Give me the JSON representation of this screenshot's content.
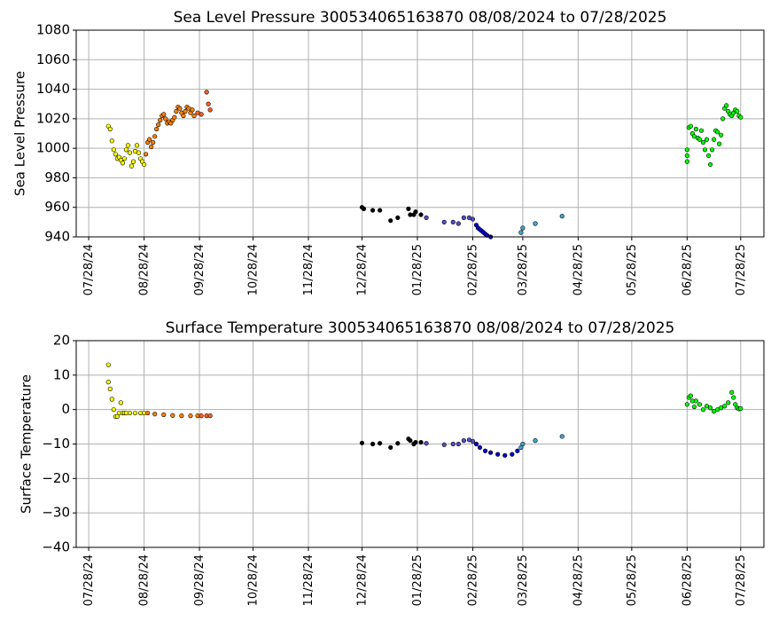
{
  "chart_data": [
    {
      "type": "scatter",
      "title": "Sea Level Pressure 300534065163870  08/08/2024 to 07/28/2025",
      "ylabel": "Sea Level Pressure",
      "xlabel": "",
      "ylim": [
        940,
        1080
      ],
      "yticks": [
        940,
        960,
        980,
        1000,
        1020,
        1040,
        1060,
        1080
      ],
      "xlim": [
        "2024-07-21",
        "2025-08-10"
      ],
      "xticks": [
        "07/28/24",
        "08/28/24",
        "09/28/24",
        "10/28/24",
        "11/28/24",
        "12/28/24",
        "01/28/25",
        "02/28/25",
        "03/28/25",
        "04/28/25",
        "05/28/25",
        "06/28/25",
        "07/28/25"
      ],
      "grid": true,
      "series": [
        {
          "color": "#ffff00",
          "values": [
            [
              "2024-08-08",
              1015
            ],
            [
              "2024-08-09",
              1013
            ],
            [
              "2024-08-10",
              1005
            ],
            [
              "2024-08-11",
              999
            ],
            [
              "2024-08-12",
              996
            ],
            [
              "2024-08-13",
              993
            ],
            [
              "2024-08-14",
              994
            ],
            [
              "2024-08-15",
              992
            ],
            [
              "2024-08-16",
              990
            ],
            [
              "2024-08-17",
              993
            ],
            [
              "2024-08-18",
              999
            ],
            [
              "2024-08-19",
              1002
            ],
            [
              "2024-08-20",
              997
            ],
            [
              "2024-08-21",
              988
            ],
            [
              "2024-08-22",
              991
            ],
            [
              "2024-08-23",
              998
            ],
            [
              "2024-08-24",
              1002
            ],
            [
              "2024-08-25",
              997
            ],
            [
              "2024-08-26",
              993
            ],
            [
              "2024-08-27",
              991
            ],
            [
              "2024-08-28",
              989
            ]
          ]
        },
        {
          "color": "#ff8000",
          "values": [
            [
              "2024-08-29",
              996
            ],
            [
              "2024-08-30",
              1004
            ],
            [
              "2024-08-31",
              1006
            ],
            [
              "2024-09-01",
              1001
            ],
            [
              "2024-09-02",
              1004
            ],
            [
              "2024-09-03",
              1008
            ],
            [
              "2024-09-04",
              1013
            ],
            [
              "2024-09-05",
              1016
            ],
            [
              "2024-09-06",
              1019
            ],
            [
              "2024-09-07",
              1022
            ],
            [
              "2024-09-08",
              1023
            ],
            [
              "2024-09-09",
              1020
            ],
            [
              "2024-09-10",
              1017
            ],
            [
              "2024-09-11",
              1018
            ],
            [
              "2024-09-12",
              1017
            ],
            [
              "2024-09-13",
              1019
            ],
            [
              "2024-09-14",
              1021
            ],
            [
              "2024-09-15",
              1025
            ],
            [
              "2024-09-16",
              1028
            ],
            [
              "2024-09-17",
              1027
            ],
            [
              "2024-09-18",
              1024
            ],
            [
              "2024-09-19",
              1022
            ],
            [
              "2024-09-20",
              1025
            ],
            [
              "2024-09-21",
              1028
            ],
            [
              "2024-09-22",
              1027
            ],
            [
              "2024-09-23",
              1024
            ],
            [
              "2024-09-24",
              1026
            ],
            [
              "2024-09-25",
              1022
            ]
          ]
        },
        {
          "color": "#ff6020",
          "values": [
            [
              "2024-09-27",
              1024
            ],
            [
              "2024-09-29",
              1023
            ],
            [
              "2024-10-02",
              1038
            ],
            [
              "2024-10-03",
              1030
            ],
            [
              "2024-10-04",
              1026
            ]
          ]
        },
        {
          "color": "#000000",
          "values": [
            [
              "2024-12-28",
              960
            ],
            [
              "2024-12-29",
              959
            ],
            [
              "2025-01-03",
              958
            ],
            [
              "2025-01-07",
              958
            ],
            [
              "2025-01-13",
              951
            ],
            [
              "2025-01-17",
              953
            ],
            [
              "2025-01-23",
              959
            ],
            [
              "2025-01-24",
              955
            ],
            [
              "2025-01-26",
              955
            ],
            [
              "2025-01-27",
              957
            ],
            [
              "2025-01-30",
              955
            ]
          ]
        },
        {
          "color": "#5050c0",
          "values": [
            [
              "2025-02-02",
              953
            ],
            [
              "2025-02-12",
              950
            ],
            [
              "2025-02-17",
              950
            ],
            [
              "2025-02-20",
              949
            ],
            [
              "2025-02-23",
              953
            ],
            [
              "2025-02-26",
              953
            ],
            [
              "2025-02-28",
              952
            ]
          ]
        },
        {
          "color": "#0000cc",
          "values": [
            [
              "2025-03-02",
              948
            ],
            [
              "2025-03-03",
              946
            ],
            [
              "2025-03-04",
              945
            ],
            [
              "2025-03-05",
              944
            ],
            [
              "2025-03-06",
              943
            ],
            [
              "2025-03-07",
              942
            ],
            [
              "2025-03-08",
              941
            ],
            [
              "2025-03-10",
              940
            ],
            [
              "2025-03-12",
              939
            ]
          ]
        },
        {
          "color": "#3aa6d8",
          "values": [
            [
              "2025-03-27",
              943
            ],
            [
              "2025-03-28",
              946
            ],
            [
              "2025-04-04",
              949
            ],
            [
              "2025-04-19",
              954
            ]
          ]
        },
        {
          "color": "#00ff00",
          "values": [
            [
              "2025-06-28",
              991
            ],
            [
              "2025-06-28",
              995
            ],
            [
              "2025-06-28",
              999
            ],
            [
              "2025-06-29",
              1014
            ],
            [
              "2025-06-30",
              1015
            ],
            [
              "2025-07-01",
              1010
            ],
            [
              "2025-07-02",
              1008
            ],
            [
              "2025-07-03",
              1013
            ],
            [
              "2025-07-04",
              1007
            ],
            [
              "2025-07-05",
              1006
            ],
            [
              "2025-07-06",
              1012
            ],
            [
              "2025-07-07",
              1004
            ],
            [
              "2025-07-08",
              999
            ],
            [
              "2025-07-09",
              1006
            ],
            [
              "2025-07-10",
              995
            ],
            [
              "2025-07-11",
              989
            ],
            [
              "2025-07-12",
              999
            ],
            [
              "2025-07-13",
              1006
            ],
            [
              "2025-07-14",
              1012
            ],
            [
              "2025-07-15",
              1011
            ],
            [
              "2025-07-16",
              1003
            ],
            [
              "2025-07-17",
              1009
            ],
            [
              "2025-07-18",
              1020
            ],
            [
              "2025-07-19",
              1027
            ],
            [
              "2025-07-20",
              1029
            ],
            [
              "2025-07-21",
              1025
            ],
            [
              "2025-07-22",
              1023
            ],
            [
              "2025-07-23",
              1022
            ],
            [
              "2025-07-24",
              1024
            ],
            [
              "2025-07-25",
              1026
            ],
            [
              "2025-07-26",
              1025
            ],
            [
              "2025-07-27",
              1022
            ],
            [
              "2025-07-28",
              1021
            ]
          ]
        }
      ]
    },
    {
      "type": "scatter",
      "title": "Surface Temperature 300534065163870  08/08/2024 to 07/28/2025",
      "ylabel": "Surface Temperature",
      "xlabel": "",
      "ylim": [
        -40,
        20
      ],
      "yticks": [
        -40,
        -30,
        -20,
        -10,
        0,
        10,
        20
      ],
      "xlim": [
        "2024-07-21",
        "2025-08-10"
      ],
      "xticks": [
        "07/28/24",
        "08/28/24",
        "09/28/24",
        "10/28/24",
        "11/28/24",
        "12/28/24",
        "01/28/25",
        "02/28/25",
        "03/28/25",
        "04/28/25",
        "05/28/25",
        "06/28/25",
        "07/28/25"
      ],
      "grid": true,
      "series": [
        {
          "color": "#ffff00",
          "values": [
            [
              "2024-08-08",
              13
            ],
            [
              "2024-08-08",
              8
            ],
            [
              "2024-08-09",
              6
            ],
            [
              "2024-08-10",
              3
            ],
            [
              "2024-08-11",
              0
            ],
            [
              "2024-08-12",
              -2
            ],
            [
              "2024-08-13",
              -2
            ],
            [
              "2024-08-14",
              -1
            ],
            [
              "2024-08-15",
              2
            ],
            [
              "2024-08-16",
              -1
            ],
            [
              "2024-08-17",
              -1
            ],
            [
              "2024-08-18",
              -1
            ],
            [
              "2024-08-20",
              -1
            ],
            [
              "2024-08-23",
              -1
            ],
            [
              "2024-08-26",
              -1
            ],
            [
              "2024-08-28",
              -1
            ]
          ]
        },
        {
          "color": "#ff8000",
          "values": [
            [
              "2024-08-30",
              -1
            ],
            [
              "2024-09-03",
              -1.3
            ],
            [
              "2024-09-08",
              -1.5
            ],
            [
              "2024-09-13",
              -1.7
            ],
            [
              "2024-09-18",
              -1.8
            ],
            [
              "2024-09-23",
              -1.8
            ],
            [
              "2024-09-27",
              -1.8
            ]
          ]
        },
        {
          "color": "#ff6020",
          "values": [
            [
              "2024-09-29",
              -1.8
            ],
            [
              "2024-10-02",
              -1.8
            ],
            [
              "2024-10-04",
              -1.8
            ]
          ]
        },
        {
          "color": "#000000",
          "values": [
            [
              "2024-12-28",
              -9.7
            ],
            [
              "2025-01-03",
              -10
            ],
            [
              "2025-01-07",
              -9.8
            ],
            [
              "2025-01-13",
              -11
            ],
            [
              "2025-01-17",
              -9.8
            ],
            [
              "2025-01-23",
              -8.5
            ],
            [
              "2025-01-24",
              -9
            ],
            [
              "2025-01-26",
              -10
            ],
            [
              "2025-01-27",
              -9.5
            ],
            [
              "2025-01-30",
              -9.5
            ]
          ]
        },
        {
          "color": "#5050c0",
          "values": [
            [
              "2025-02-02",
              -9.8
            ],
            [
              "2025-02-12",
              -10.2
            ],
            [
              "2025-02-17",
              -10
            ],
            [
              "2025-02-20",
              -10
            ],
            [
              "2025-02-23",
              -9
            ],
            [
              "2025-02-26",
              -8.8
            ],
            [
              "2025-02-28",
              -9.2
            ]
          ]
        },
        {
          "color": "#0000cc",
          "values": [
            [
              "2025-03-02",
              -10
            ],
            [
              "2025-03-04",
              -11
            ],
            [
              "2025-03-07",
              -12
            ],
            [
              "2025-03-10",
              -12.5
            ],
            [
              "2025-03-14",
              -13
            ],
            [
              "2025-03-18",
              -13.3
            ],
            [
              "2025-03-22",
              -13
            ],
            [
              "2025-03-25",
              -12
            ]
          ]
        },
        {
          "color": "#3aa6d8",
          "values": [
            [
              "2025-03-27",
              -11
            ],
            [
              "2025-03-28",
              -10
            ],
            [
              "2025-04-04",
              -9
            ],
            [
              "2025-04-19",
              -7.8
            ]
          ]
        },
        {
          "color": "#00ff00",
          "values": [
            [
              "2025-06-28",
              1.5
            ],
            [
              "2025-06-29",
              3.5
            ],
            [
              "2025-06-30",
              4
            ],
            [
              "2025-07-01",
              2.5
            ],
            [
              "2025-07-02",
              0.8
            ],
            [
              "2025-07-03",
              2.5
            ],
            [
              "2025-07-05",
              1.5
            ],
            [
              "2025-07-07",
              0
            ],
            [
              "2025-07-09",
              1
            ],
            [
              "2025-07-11",
              0.5
            ],
            [
              "2025-07-13",
              -0.5
            ],
            [
              "2025-07-15",
              0
            ],
            [
              "2025-07-17",
              0.5
            ],
            [
              "2025-07-19",
              1
            ],
            [
              "2025-07-21",
              2
            ],
            [
              "2025-07-23",
              5
            ],
            [
              "2025-07-24",
              3.5
            ],
            [
              "2025-07-25",
              1.5
            ],
            [
              "2025-07-26",
              0.5
            ],
            [
              "2025-07-27",
              0.2
            ],
            [
              "2025-07-28",
              0.3
            ]
          ]
        }
      ]
    }
  ]
}
